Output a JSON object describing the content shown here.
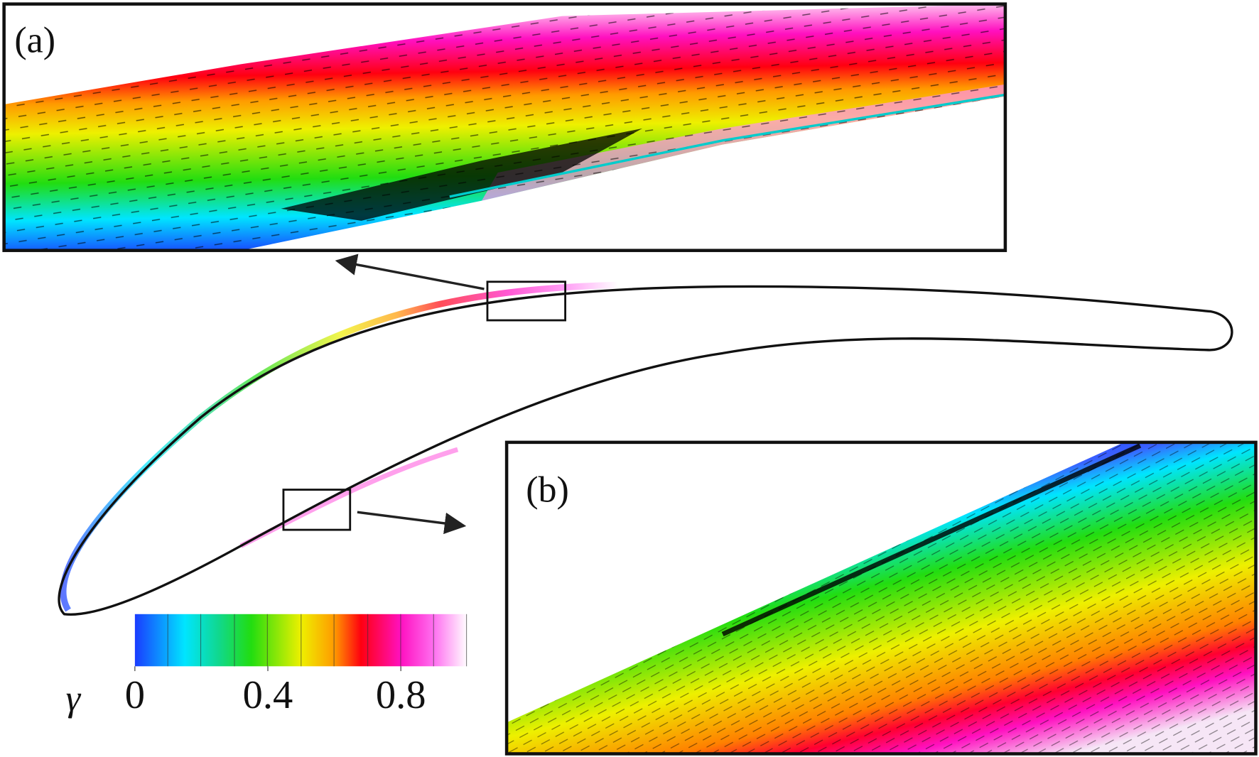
{
  "panels": [
    {
      "label": "(a)"
    },
    {
      "label": "(b)"
    }
  ],
  "colorbar": {
    "label": "γ",
    "lim": [
      0,
      1
    ],
    "ticks": [
      0,
      0.4,
      0.8
    ]
  }
}
